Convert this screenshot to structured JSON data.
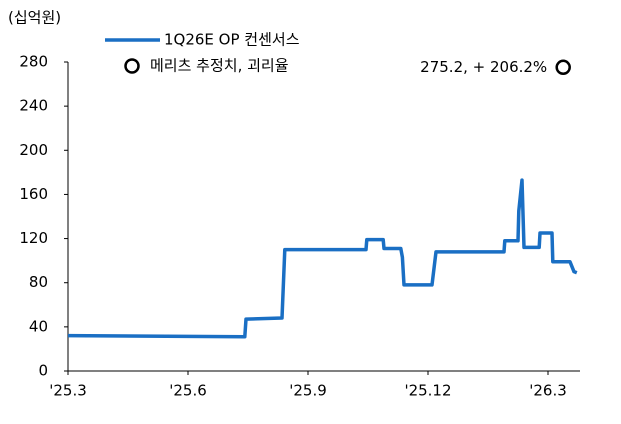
{
  "chart_data": {
    "type": "line",
    "unit_label": "(십억원)",
    "xlim": [
      0,
      12.8
    ],
    "xticks": [
      {
        "value": 0,
        "label": "'25.3"
      },
      {
        "value": 3,
        "label": "'25.6"
      },
      {
        "value": 6,
        "label": "'25.9"
      },
      {
        "value": 9,
        "label": "'25.12"
      },
      {
        "value": 12,
        "label": "'26.3"
      }
    ],
    "ylim": [
      0,
      280
    ],
    "yticks": [
      0,
      40,
      80,
      120,
      160,
      200,
      240,
      280
    ],
    "series": [
      {
        "name": "1Q26E OP 컨센서스",
        "color": "#1a6fc4",
        "type": "line",
        "x": [
          0,
          4.42,
          4.45,
          5.35,
          5.42,
          7.45,
          7.47,
          7.88,
          7.9,
          8.32,
          8.36,
          8.4,
          9.1,
          9.2,
          10.9,
          10.92,
          11.25,
          11.27,
          11.35,
          11.4,
          11.78,
          11.8,
          12.1,
          12.12,
          12.55,
          12.65,
          12.72
        ],
        "values": [
          32,
          31,
          47,
          48,
          110,
          110,
          119,
          119,
          111,
          111,
          103,
          78,
          78,
          108,
          108,
          118,
          118,
          145,
          173,
          112,
          112,
          125,
          125,
          99,
          99,
          90,
          89
        ]
      },
      {
        "name": "메리츠 추정치, 괴리율",
        "color": "#000000",
        "type": "scatter",
        "x": [
          12.38
        ],
        "values": [
          275.2
        ],
        "value_labels": [
          "275.2, + 206.2%"
        ]
      }
    ]
  }
}
